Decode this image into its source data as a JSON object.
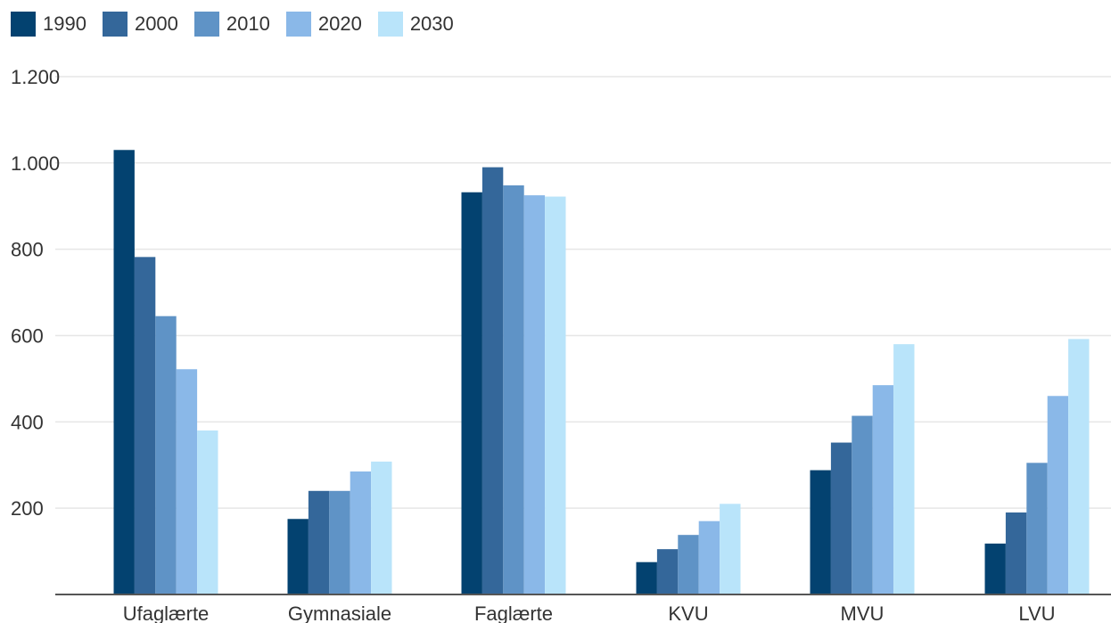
{
  "chart_data": {
    "type": "bar",
    "categories": [
      "Ufaglærte",
      "Gymnasiale",
      "Faglærte",
      "KVU",
      "MVU",
      "LVU"
    ],
    "series": [
      {
        "name": "1990",
        "color": "#034270",
        "values": [
          1030,
          175,
          932,
          75,
          288,
          118
        ]
      },
      {
        "name": "2000",
        "color": "#34679a",
        "values": [
          782,
          240,
          990,
          105,
          352,
          190
        ]
      },
      {
        "name": "2010",
        "color": "#5f93c6",
        "values": [
          645,
          240,
          948,
          138,
          414,
          305
        ]
      },
      {
        "name": "2020",
        "color": "#8ab8e8",
        "values": [
          522,
          285,
          925,
          170,
          485,
          460
        ]
      },
      {
        "name": "2030",
        "color": "#b9e4fa",
        "values": [
          380,
          308,
          922,
          210,
          580,
          592
        ]
      }
    ],
    "yticks": [
      {
        "value": 200,
        "label": "200"
      },
      {
        "value": 400,
        "label": "400"
      },
      {
        "value": 600,
        "label": "600"
      },
      {
        "value": 800,
        "label": "800"
      },
      {
        "value": 1000,
        "label": "1.000"
      },
      {
        "value": 1200,
        "label": "1.200"
      }
    ],
    "ylim": [
      0,
      1200
    ],
    "grid": true,
    "legend_position": "top-left",
    "title": "",
    "xlabel": "",
    "ylabel": ""
  }
}
